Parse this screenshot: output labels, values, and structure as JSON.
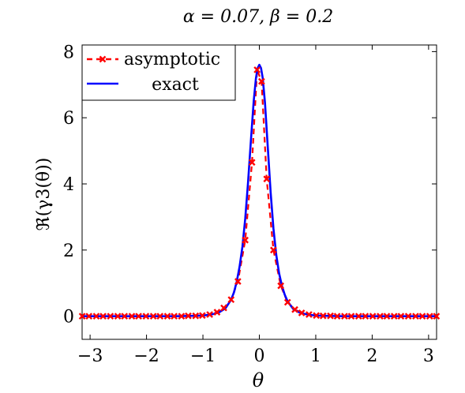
{
  "chart_data": {
    "type": "line",
    "title": "α = 0.07,    β = 0.2",
    "xlabel": "θ",
    "ylabel": "ℜ(γ3(θ))",
    "xlim": [
      -3.14159,
      3.14159
    ],
    "ylim": [
      -0.7,
      8.2
    ],
    "xticks": [
      -3,
      -2,
      -1,
      0,
      1,
      2,
      3
    ],
    "xtick_labels": [
      "−3",
      "−2",
      "−1",
      "0",
      "1",
      "2",
      "3"
    ],
    "yticks": [
      0,
      2,
      4,
      6,
      8
    ],
    "ytick_labels": [
      "0",
      "2",
      "4",
      "6",
      "8"
    ],
    "grid": false,
    "legend_position": "top-left",
    "series": [
      {
        "name": "asymptotic",
        "style": "dashed-markers",
        "color": "#ff0000",
        "x": [
          -3.14,
          -3.02,
          -2.89,
          -2.77,
          -2.64,
          -2.51,
          -2.39,
          -2.26,
          -2.14,
          -2.01,
          -1.88,
          -1.76,
          -1.63,
          -1.51,
          -1.38,
          -1.26,
          -1.13,
          -1.01,
          -0.88,
          -0.75,
          -0.63,
          -0.5,
          -0.38,
          -0.25,
          -0.13,
          -0.04,
          0.04,
          0.13,
          0.25,
          0.38,
          0.5,
          0.63,
          0.75,
          0.88,
          1.01,
          1.13,
          1.26,
          1.38,
          1.51,
          1.63,
          1.76,
          1.88,
          2.01,
          2.14,
          2.26,
          2.39,
          2.51,
          2.64,
          2.77,
          2.89,
          3.02,
          3.14
        ],
        "y": [
          0.0,
          0.0,
          0.0,
          0.0,
          0.0,
          0.0,
          0.0,
          0.0,
          0.0,
          0.0,
          0.0,
          0.0,
          0.0,
          0.0,
          0.0,
          0.01,
          0.01,
          0.02,
          0.05,
          0.12,
          0.25,
          0.5,
          1.05,
          2.3,
          4.65,
          7.45,
          7.1,
          4.15,
          2.0,
          0.92,
          0.42,
          0.2,
          0.1,
          0.05,
          0.02,
          0.01,
          0.01,
          0.0,
          0.0,
          0.0,
          0.0,
          0.0,
          0.0,
          0.0,
          0.0,
          0.0,
          0.0,
          0.0,
          0.0,
          0.0,
          0.0,
          0.0
        ]
      },
      {
        "name": "exact",
        "style": "solid",
        "color": "#0000ff",
        "x": [
          -3.14,
          -2.5,
          -2.0,
          -1.5,
          -1.2,
          -1.0,
          -0.9,
          -0.8,
          -0.7,
          -0.6,
          -0.5,
          -0.45,
          -0.4,
          -0.35,
          -0.3,
          -0.25,
          -0.2,
          -0.15,
          -0.1,
          -0.06,
          -0.03,
          0.0,
          0.03,
          0.06,
          0.1,
          0.15,
          0.2,
          0.25,
          0.3,
          0.35,
          0.4,
          0.45,
          0.5,
          0.6,
          0.7,
          0.8,
          0.9,
          1.0,
          1.2,
          1.5,
          2.0,
          2.5,
          3.14
        ],
        "y": [
          0.0,
          0.0,
          0.0,
          0.0,
          0.01,
          0.02,
          0.04,
          0.07,
          0.13,
          0.24,
          0.5,
          0.72,
          1.05,
          1.5,
          2.1,
          2.95,
          4.05,
          5.3,
          6.5,
          7.2,
          7.5,
          7.6,
          7.5,
          7.2,
          6.45,
          5.1,
          3.75,
          2.65,
          1.85,
          1.3,
          0.92,
          0.65,
          0.45,
          0.22,
          0.12,
          0.07,
          0.04,
          0.02,
          0.01,
          0.0,
          0.0,
          0.0,
          0.0
        ]
      }
    ]
  }
}
